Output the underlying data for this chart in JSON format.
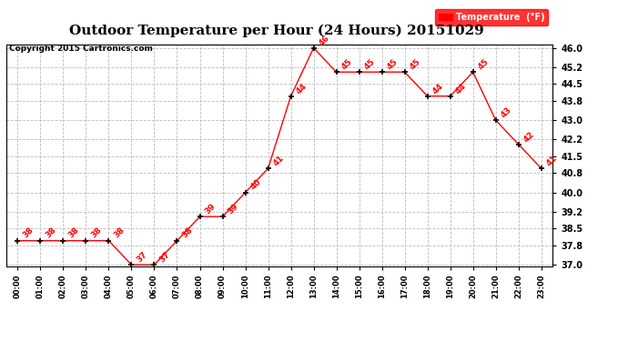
{
  "title": "Outdoor Temperature per Hour (24 Hours) 20151029",
  "copyright": "Copyright 2015 Cartronics.com",
  "legend_label": "Temperature  (°F)",
  "hours": [
    "00:00",
    "01:00",
    "02:00",
    "03:00",
    "04:00",
    "05:00",
    "06:00",
    "07:00",
    "08:00",
    "09:00",
    "10:00",
    "11:00",
    "12:00",
    "13:00",
    "14:00",
    "15:00",
    "16:00",
    "17:00",
    "18:00",
    "19:00",
    "20:00",
    "21:00",
    "22:00",
    "23:00"
  ],
  "temps": [
    38,
    38,
    38,
    38,
    38,
    37,
    37,
    38,
    39,
    39,
    40,
    41,
    44,
    46,
    45,
    45,
    45,
    45,
    44,
    44,
    45,
    43,
    42,
    41
  ],
  "ylim_min": 37.0,
  "ylim_max": 46.0,
  "yticks": [
    37.0,
    37.8,
    38.5,
    39.2,
    40.0,
    40.8,
    41.5,
    42.2,
    43.0,
    43.8,
    44.5,
    45.2,
    46.0
  ],
  "line_color": "red",
  "bg_color": "white",
  "grid_color": "#bbbbbb",
  "title_fontsize": 11,
  "annot_fontsize": 6.5
}
